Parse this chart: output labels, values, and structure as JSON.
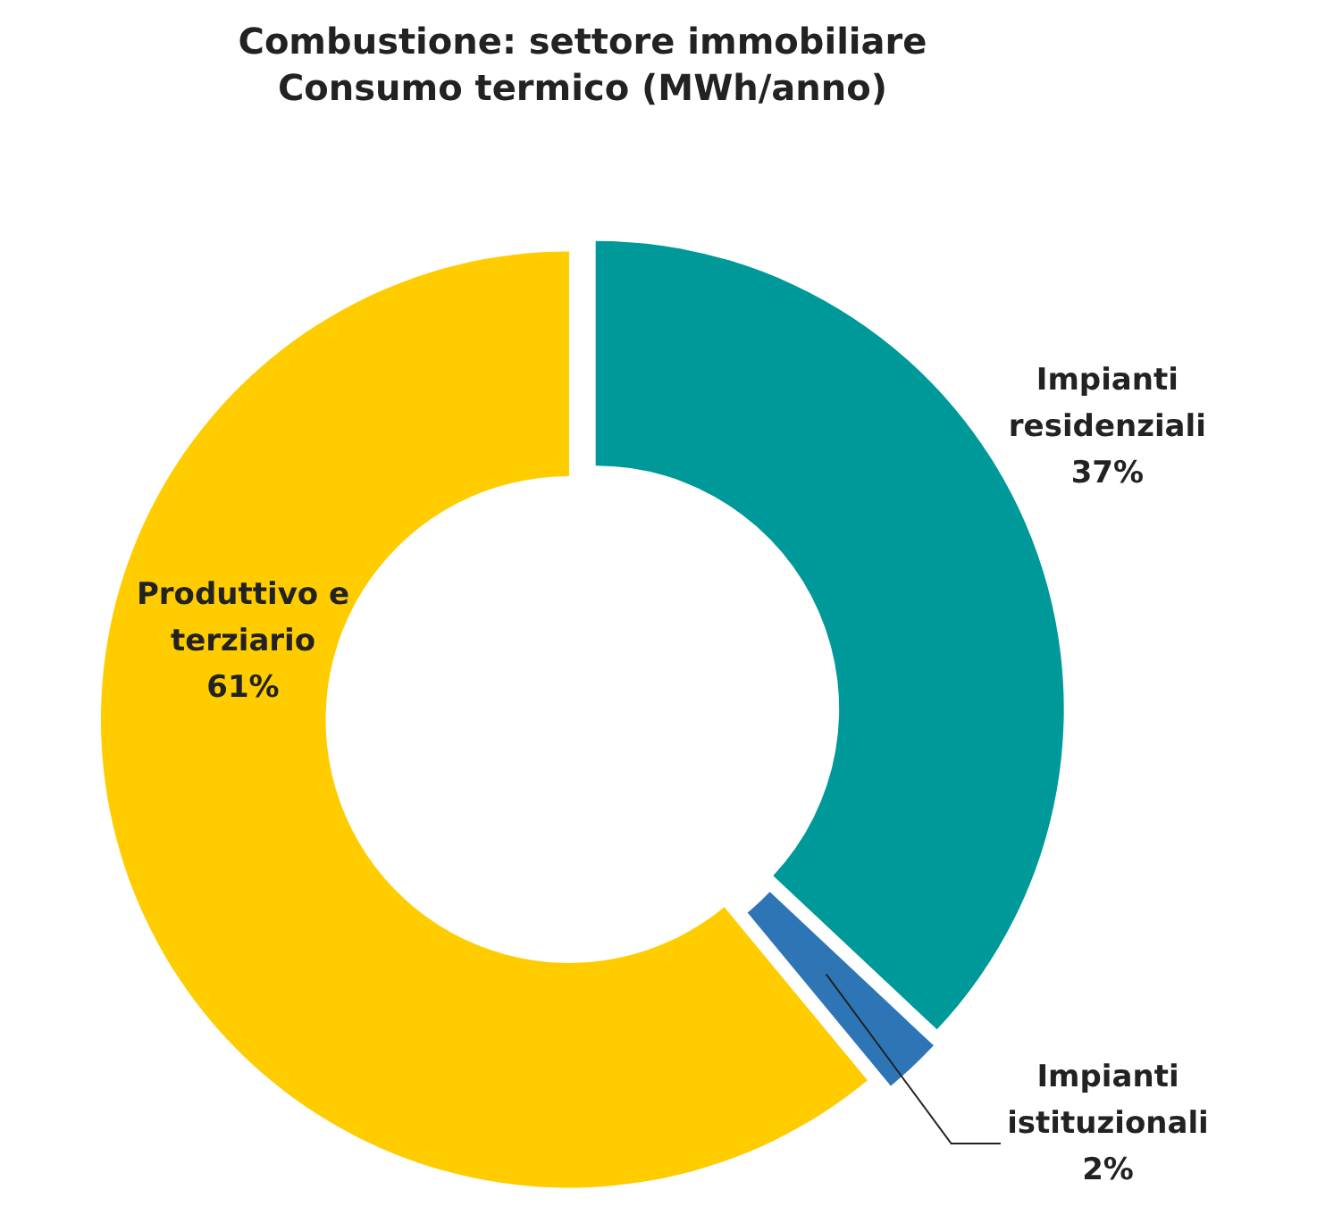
{
  "chart_data": {
    "type": "donut",
    "title": "Combustione: settore immobiliare\nConsumo termico (MWh/anno)",
    "categories": [
      "Impianti residenziali",
      "Impianti istituzionali",
      "Produttivo e terziario"
    ],
    "values": [
      37,
      2,
      61
    ],
    "colors": [
      "#009999",
      "#2e75b6",
      "#ffcc00"
    ],
    "value_labels": [
      "37%",
      "2%",
      "61%"
    ]
  }
}
